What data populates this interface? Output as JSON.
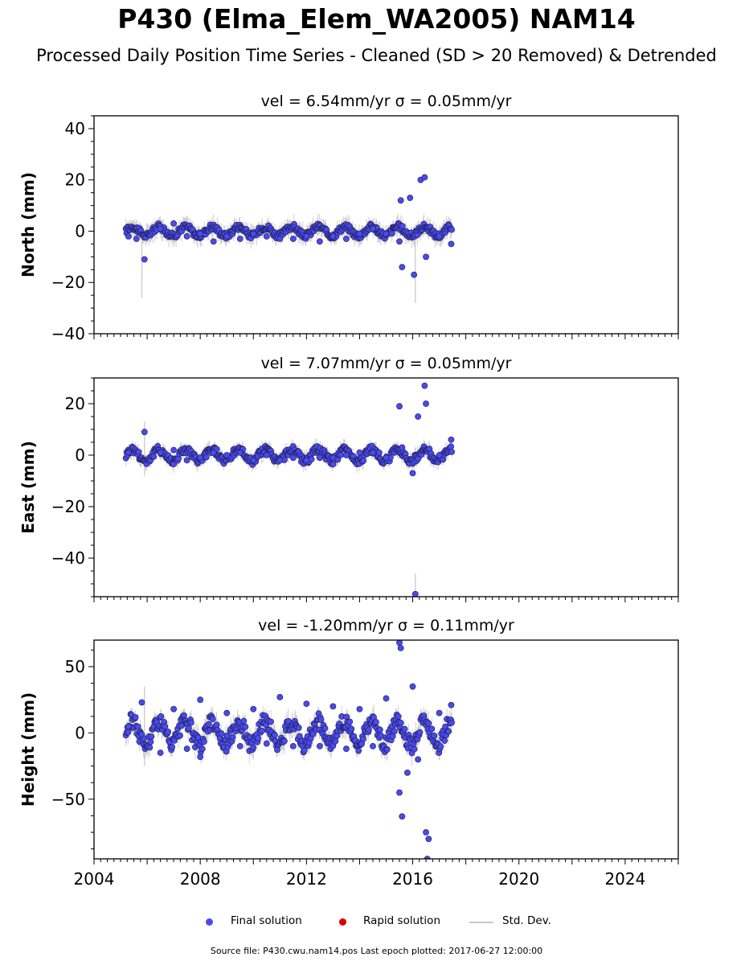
{
  "page": {
    "title": "P430 (Elma_Elem_WA2005) NAM14",
    "subtitle": "Processed Daily Position Time Series - Cleaned (SD > 20 Removed) & Detrended",
    "source_line": "Source file: P430.cwu.nam14.pos  Last epoch plotted: 2017-06-27 12:00:00"
  },
  "legend": {
    "items": [
      {
        "label": "Final solution",
        "kind": "dot",
        "color": "#4a4af0"
      },
      {
        "label": "Rapid solution",
        "kind": "dot",
        "color": "#e00000"
      },
      {
        "label": "Std. Dev.",
        "kind": "line",
        "color": "#c8c8c8"
      }
    ]
  },
  "colors": {
    "final_marker": "#4a4af0",
    "marker_edge": "#1a1a40",
    "stddev": "#bdbdbd",
    "axis": "#000000"
  },
  "chart_data": [
    {
      "type": "scatter",
      "panel": "north",
      "title": "vel = 6.54mm/yr   σ = 0.05mm/yr",
      "ylabel": "North (mm)",
      "xlim": [
        2004,
        2026
      ],
      "ylim": [
        -40,
        45
      ],
      "yticks": [
        -40,
        -20,
        0,
        20,
        40
      ],
      "yticklabels": [
        "−40",
        "−20",
        "0",
        "20",
        "40"
      ],
      "data_range": [
        2005.2,
        2017.49
      ],
      "series": [
        {
          "name": "Final solution",
          "color": "#4a4af0",
          "points": [
            [
              2005.3,
              -2
            ],
            [
              2005.6,
              -3
            ],
            [
              2005.9,
              -11
            ],
            [
              2006.5,
              1
            ],
            [
              2007.0,
              3
            ],
            [
              2007.5,
              -2
            ],
            [
              2008.0,
              -1
            ],
            [
              2008.5,
              -4
            ],
            [
              2009.0,
              -2
            ],
            [
              2009.5,
              -3
            ],
            [
              2010.0,
              -1
            ],
            [
              2010.5,
              -2
            ],
            [
              2011.0,
              -3
            ],
            [
              2011.5,
              -3
            ],
            [
              2012.0,
              -2
            ],
            [
              2012.5,
              -4
            ],
            [
              2013.0,
              -2
            ],
            [
              2013.5,
              -3
            ],
            [
              2014.0,
              -1
            ],
            [
              2014.5,
              1
            ],
            [
              2015.0,
              -1
            ],
            [
              2015.5,
              -4
            ],
            [
              2015.55,
              12
            ],
            [
              2015.6,
              -14
            ],
            [
              2015.9,
              13
            ],
            [
              2016.05,
              -17
            ],
            [
              2016.3,
              20
            ],
            [
              2016.45,
              21
            ],
            [
              2016.5,
              -10
            ],
            [
              2017.0,
              -2
            ],
            [
              2017.45,
              -5
            ]
          ]
        }
      ],
      "envelope": {
        "amplitude": 1.8,
        "error": 3
      },
      "errorbars": [
        [
          2005.8,
          -26,
          0
        ],
        [
          2016.1,
          -28,
          -2
        ]
      ]
    },
    {
      "type": "scatter",
      "panel": "east",
      "title": "vel = 7.07mm/yr   σ = 0.05mm/yr",
      "ylabel": "East (mm)",
      "xlim": [
        2004,
        2026
      ],
      "ylim": [
        -55,
        30
      ],
      "yticks": [
        -40,
        -20,
        0,
        20
      ],
      "yticklabels": [
        "−40",
        "−20",
        "0",
        "20"
      ],
      "data_range": [
        2005.2,
        2017.49
      ],
      "series": [
        {
          "name": "Final solution",
          "color": "#4a4af0",
          "points": [
            [
              2005.3,
              1
            ],
            [
              2005.9,
              9
            ],
            [
              2006.5,
              1
            ],
            [
              2007.0,
              2
            ],
            [
              2007.5,
              -2
            ],
            [
              2008.0,
              -1
            ],
            [
              2008.5,
              1
            ],
            [
              2009.0,
              0
            ],
            [
              2009.5,
              1
            ],
            [
              2010.0,
              -2
            ],
            [
              2010.5,
              0
            ],
            [
              2011.0,
              -2
            ],
            [
              2011.5,
              -1
            ],
            [
              2012.0,
              -2
            ],
            [
              2012.5,
              -1
            ],
            [
              2013.0,
              -1
            ],
            [
              2013.5,
              0
            ],
            [
              2014.0,
              1
            ],
            [
              2014.5,
              1
            ],
            [
              2015.0,
              -1
            ],
            [
              2015.5,
              19
            ],
            [
              2015.6,
              3
            ],
            [
              2016.0,
              -7
            ],
            [
              2016.1,
              -54
            ],
            [
              2016.2,
              15
            ],
            [
              2016.45,
              27
            ],
            [
              2016.5,
              20
            ],
            [
              2017.0,
              0
            ],
            [
              2017.45,
              6
            ]
          ]
        }
      ],
      "envelope": {
        "amplitude": 2.2,
        "error": 2.5
      },
      "errorbars": [
        [
          2005.9,
          -8,
          13
        ],
        [
          2016.1,
          -46,
          -54
        ]
      ]
    },
    {
      "type": "scatter",
      "panel": "height",
      "title": "vel = -1.20mm/yr   σ = 0.11mm/yr",
      "ylabel": "Height (mm)",
      "xlim": [
        2004,
        2026
      ],
      "ylim": [
        -95,
        70
      ],
      "yticks": [
        -50,
        0,
        50
      ],
      "yticklabels": [
        "−50",
        "0",
        "50"
      ],
      "xticks": [
        2004,
        2008,
        2012,
        2016,
        2020,
        2024
      ],
      "xticklabels": [
        "2004",
        "2008",
        "2012",
        "2016",
        "2020",
        "2024"
      ],
      "data_range": [
        2005.2,
        2017.49
      ],
      "series": [
        {
          "name": "Final solution",
          "color": "#4a4af0",
          "points": [
            [
              2005.3,
              5
            ],
            [
              2005.8,
              23
            ],
            [
              2006.5,
              -15
            ],
            [
              2007.0,
              18
            ],
            [
              2007.5,
              -12
            ],
            [
              2008.0,
              -18
            ],
            [
              2008.0,
              25
            ],
            [
              2009.0,
              15
            ],
            [
              2009.5,
              -10
            ],
            [
              2010.0,
              18
            ],
            [
              2010.5,
              -8
            ],
            [
              2011.0,
              27
            ],
            [
              2011.5,
              -10
            ],
            [
              2012.0,
              22
            ],
            [
              2012.5,
              -10
            ],
            [
              2013.0,
              20
            ],
            [
              2013.5,
              -12
            ],
            [
              2014.0,
              18
            ],
            [
              2014.5,
              -10
            ],
            [
              2015.0,
              26
            ],
            [
              2015.5,
              -45
            ],
            [
              2015.5,
              68
            ],
            [
              2015.55,
              64
            ],
            [
              2015.6,
              -63
            ],
            [
              2015.8,
              -30
            ],
            [
              2016.0,
              35
            ],
            [
              2016.2,
              -20
            ],
            [
              2016.5,
              -75
            ],
            [
              2016.55,
              -95
            ],
            [
              2016.6,
              -80
            ],
            [
              2017.0,
              15
            ],
            [
              2017.45,
              21
            ]
          ]
        }
      ],
      "envelope": {
        "amplitude": 9,
        "error": 7
      },
      "errorbars": [
        [
          2005.9,
          -25,
          35
        ]
      ]
    }
  ]
}
